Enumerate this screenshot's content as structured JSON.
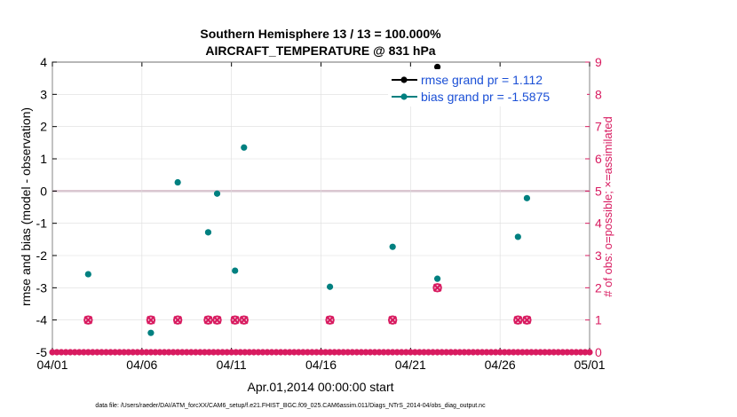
{
  "chart_data": {
    "type": "scatter",
    "title": "Southern Hemisphere 13 / 13 = 100.000%",
    "subtitle": "AIRCRAFT_TEMPERATURE @ 831 hPa",
    "xlabel": "Apr.01,2014 00:00:00 start",
    "ylabel": "rmse and bias (model - observation)",
    "y2label": "# of obs: o=possible; ×=assimilated",
    "footer": "data file: /Users/raeder/DAI/ATM_forcXX/CAM6_setup/f.e21.FHIST_BGC.f09_025.CAM6assim.011/Diags_NTrS_2014-04/obs_diag_output.nc",
    "xlim": [
      0,
      30
    ],
    "ylim": [
      -5,
      4
    ],
    "y2lim": [
      0,
      9
    ],
    "x_ticks": [
      0,
      5,
      10,
      15,
      20,
      25,
      30
    ],
    "x_tick_labels": [
      "04/01",
      "04/06",
      "04/11",
      "04/16",
      "04/21",
      "04/26",
      "05/01"
    ],
    "y_ticks": [
      -5,
      -4,
      -3,
      -2,
      -1,
      0,
      1,
      2,
      3,
      4
    ],
    "y_tick_labels": [
      "-5",
      "-4",
      "-3",
      "-2",
      "-1",
      "0",
      "1",
      "2",
      "3",
      "4"
    ],
    "y2_ticks": [
      0,
      1,
      2,
      3,
      4,
      5,
      6,
      7,
      8,
      9
    ],
    "y2_tick_labels": [
      "0",
      "1",
      "2",
      "3",
      "4",
      "5",
      "6",
      "7",
      "8",
      "9"
    ],
    "zero_line": 0,
    "legend_position": "top-right",
    "series": [
      {
        "name": "rmse grand pr = 1.112",
        "color": "#000000",
        "marker": "filled-circle",
        "points": [
          [
            21.5,
            3.85
          ]
        ]
      },
      {
        "name": "bias grand pr = -1.5875",
        "color": "#008080",
        "marker": "filled-circle",
        "points": [
          [
            2.0,
            -2.58
          ],
          [
            5.5,
            -4.4
          ],
          [
            7.0,
            0.27
          ],
          [
            8.7,
            -1.28
          ],
          [
            9.2,
            -0.08
          ],
          [
            10.2,
            -2.47
          ],
          [
            10.7,
            1.35
          ],
          [
            15.5,
            -2.97
          ],
          [
            19.0,
            -1.73
          ],
          [
            21.5,
            -2.72
          ],
          [
            26.0,
            -1.42
          ],
          [
            26.5,
            -0.22
          ]
        ]
      },
      {
        "name": "obs possible",
        "color": "#d81b60",
        "marker": "circle",
        "points": [
          [
            2.0,
            1
          ],
          [
            5.5,
            1
          ],
          [
            7.0,
            1
          ],
          [
            8.7,
            1
          ],
          [
            9.2,
            1
          ],
          [
            10.2,
            1
          ],
          [
            10.7,
            1
          ],
          [
            15.5,
            1
          ],
          [
            19.0,
            1
          ],
          [
            21.5,
            2
          ],
          [
            26.0,
            1
          ],
          [
            26.5,
            1
          ]
        ]
      },
      {
        "name": "obs assimilated",
        "color": "#d81b60",
        "marker": "x",
        "points": [
          [
            2.0,
            1
          ],
          [
            5.5,
            1
          ],
          [
            7.0,
            1
          ],
          [
            8.7,
            1
          ],
          [
            9.2,
            1
          ],
          [
            10.2,
            1
          ],
          [
            10.7,
            1
          ],
          [
            15.5,
            1
          ],
          [
            19.0,
            1
          ],
          [
            21.5,
            2
          ],
          [
            26.0,
            1
          ],
          [
            26.5,
            1
          ]
        ]
      },
      {
        "name": "obs count zero",
        "color": "#d81b60",
        "marker": "circle",
        "x_start": 0,
        "x_end": 30,
        "x_step": 0.25,
        "value": 0
      }
    ]
  }
}
